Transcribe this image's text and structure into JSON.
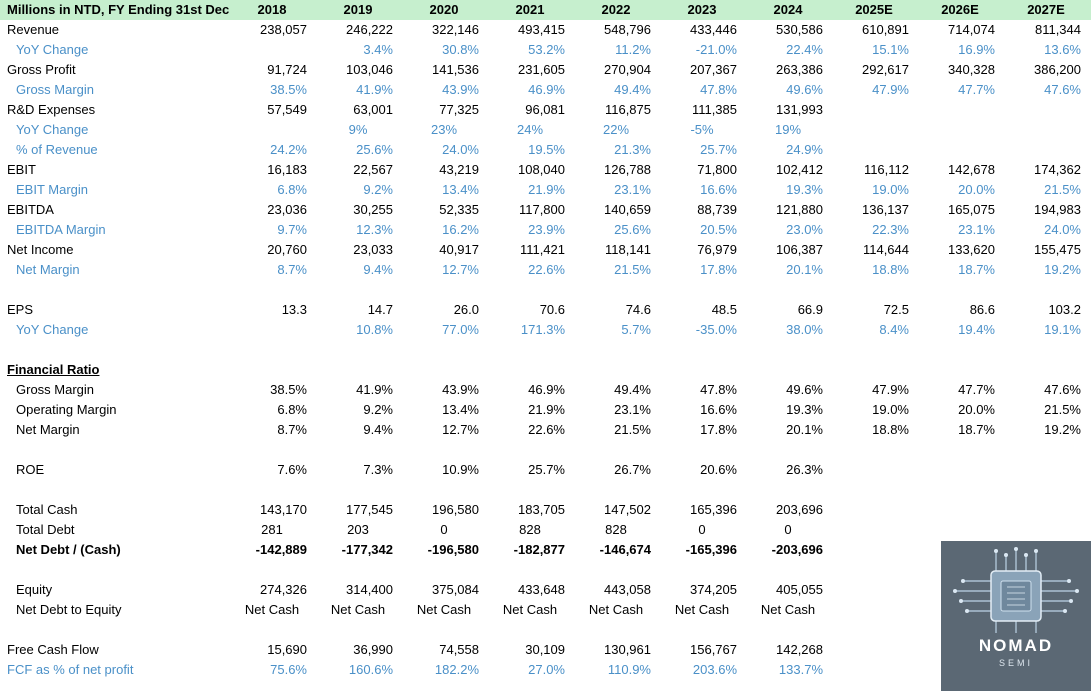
{
  "header": {
    "label": "Millions in NTD, FY Ending 31st Dec",
    "years": [
      "2018",
      "2019",
      "2020",
      "2021",
      "2022",
      "2023",
      "2024",
      "2025E",
      "2026E",
      "2027E"
    ]
  },
  "rows": [
    {
      "label": "Revenue",
      "values": [
        "238,057",
        "246,222",
        "322,146",
        "493,415",
        "548,796",
        "433,446",
        "530,586",
        "610,891",
        "714,074",
        "811,344"
      ]
    },
    {
      "label": "YoY Change",
      "style": "blue indent",
      "values": [
        "",
        "3.4%",
        "30.8%",
        "53.2%",
        "11.2%",
        "-21.0%",
        "22.4%",
        "15.1%",
        "16.9%",
        "13.6%"
      ]
    },
    {
      "label": "Gross Profit",
      "values": [
        "91,724",
        "103,046",
        "141,536",
        "231,605",
        "270,904",
        "207,367",
        "263,386",
        "292,617",
        "340,328",
        "386,200"
      ]
    },
    {
      "label": "Gross Margin",
      "style": "blue indent",
      "values": [
        "38.5%",
        "41.9%",
        "43.9%",
        "46.9%",
        "49.4%",
        "47.8%",
        "49.6%",
        "47.9%",
        "47.7%",
        "47.6%"
      ]
    },
    {
      "label": "R&D Expenses",
      "values": [
        "57,549",
        "63,001",
        "77,325",
        "96,081",
        "116,875",
        "111,385",
        "131,993",
        "",
        "",
        ""
      ]
    },
    {
      "label": "YoY Change",
      "style": "blue indent center",
      "values": [
        "",
        "9%",
        "23%",
        "24%",
        "22%",
        "-5%",
        "19%",
        "",
        "",
        ""
      ]
    },
    {
      "label": "% of Revenue",
      "style": "blue indent",
      "values": [
        "24.2%",
        "25.6%",
        "24.0%",
        "19.5%",
        "21.3%",
        "25.7%",
        "24.9%",
        "",
        "",
        ""
      ]
    },
    {
      "label": "EBIT",
      "values": [
        "16,183",
        "22,567",
        "43,219",
        "108,040",
        "126,788",
        "71,800",
        "102,412",
        "116,112",
        "142,678",
        "174,362"
      ]
    },
    {
      "label": "EBIT Margin",
      "style": "blue indent",
      "values": [
        "6.8%",
        "9.2%",
        "13.4%",
        "21.9%",
        "23.1%",
        "16.6%",
        "19.3%",
        "19.0%",
        "20.0%",
        "21.5%"
      ]
    },
    {
      "label": "EBITDA",
      "values": [
        "23,036",
        "30,255",
        "52,335",
        "117,800",
        "140,659",
        "88,739",
        "121,880",
        "136,137",
        "165,075",
        "194,983"
      ]
    },
    {
      "label": "EBITDA Margin",
      "style": "blue indent",
      "values": [
        "9.7%",
        "12.3%",
        "16.2%",
        "23.9%",
        "25.6%",
        "20.5%",
        "23.0%",
        "22.3%",
        "23.1%",
        "24.0%"
      ]
    },
    {
      "label": "Net Income",
      "values": [
        "20,760",
        "23,033",
        "40,917",
        "111,421",
        "118,141",
        "76,979",
        "106,387",
        "114,644",
        "133,620",
        "155,475"
      ]
    },
    {
      "label": "Net Margin",
      "style": "blue indent",
      "values": [
        "8.7%",
        "9.4%",
        "12.7%",
        "22.6%",
        "21.5%",
        "17.8%",
        "20.1%",
        "18.8%",
        "18.7%",
        "19.2%"
      ]
    },
    {
      "label": "",
      "values": []
    },
    {
      "label": "EPS",
      "values": [
        "13.3",
        "14.7",
        "26.0",
        "70.6",
        "74.6",
        "48.5",
        "66.9",
        "72.5",
        "86.6",
        "103.2"
      ]
    },
    {
      "label": "YoY Change",
      "style": "blue indent",
      "values": [
        "",
        "10.8%",
        "77.0%",
        "171.3%",
        "5.7%",
        "-35.0%",
        "38.0%",
        "8.4%",
        "19.4%",
        "19.1%"
      ]
    },
    {
      "label": "",
      "values": []
    },
    {
      "label": "Financial Ratio",
      "style": "ul",
      "values": []
    },
    {
      "label": "Gross Margin",
      "style": "indent",
      "values": [
        "38.5%",
        "41.9%",
        "43.9%",
        "46.9%",
        "49.4%",
        "47.8%",
        "49.6%",
        "47.9%",
        "47.7%",
        "47.6%"
      ]
    },
    {
      "label": "Operating Margin",
      "style": "indent",
      "values": [
        "6.8%",
        "9.2%",
        "13.4%",
        "21.9%",
        "23.1%",
        "16.6%",
        "19.3%",
        "19.0%",
        "20.0%",
        "21.5%"
      ]
    },
    {
      "label": "Net Margin",
      "style": "indent",
      "values": [
        "8.7%",
        "9.4%",
        "12.7%",
        "22.6%",
        "21.5%",
        "17.8%",
        "20.1%",
        "18.8%",
        "18.7%",
        "19.2%"
      ]
    },
    {
      "label": "",
      "values": []
    },
    {
      "label": "ROE",
      "style": "indent",
      "values": [
        "7.6%",
        "7.3%",
        "10.9%",
        "25.7%",
        "26.7%",
        "20.6%",
        "26.3%",
        "",
        "",
        ""
      ]
    },
    {
      "label": "",
      "values": []
    },
    {
      "label": "Total Cash",
      "style": "indent",
      "values": [
        "143,170",
        "177,545",
        "196,580",
        "183,705",
        "147,502",
        "165,396",
        "203,696",
        "",
        "",
        ""
      ]
    },
    {
      "label": "Total Debt",
      "style": "indent center",
      "values": [
        "281",
        "203",
        "0",
        "828",
        "828",
        "0",
        "0",
        "",
        "",
        ""
      ]
    },
    {
      "label": "Net Debt / (Cash)",
      "style": "indent hl",
      "values": [
        "-142,889",
        "-177,342",
        "-196,580",
        "-182,877",
        "-146,674",
        "-165,396",
        "-203,696",
        "",
        "",
        ""
      ]
    },
    {
      "label": "",
      "values": []
    },
    {
      "label": "Equity",
      "style": "indent",
      "values": [
        "274,326",
        "314,400",
        "375,084",
        "433,648",
        "443,058",
        "374,205",
        "405,055",
        "",
        "",
        ""
      ]
    },
    {
      "label": "Net Debt to Equity",
      "style": "indent center",
      "values": [
        "Net Cash",
        "Net Cash",
        "Net Cash",
        "Net Cash",
        "Net Cash",
        "Net Cash",
        "Net Cash",
        "",
        "",
        ""
      ]
    },
    {
      "label": "",
      "values": []
    },
    {
      "label": "Free Cash Flow",
      "values": [
        "15,690",
        "36,990",
        "74,558",
        "30,109",
        "130,961",
        "156,767",
        "142,268",
        "",
        "",
        ""
      ]
    },
    {
      "label": "FCF as % of net profit",
      "style": "blue",
      "values": [
        "75.6%",
        "160.6%",
        "182.2%",
        "27.0%",
        "110.9%",
        "203.6%",
        "133.7%",
        "",
        "",
        ""
      ]
    }
  ],
  "logo": {
    "title": "NOMAD",
    "subtitle": "SEMI",
    "icon": "chip-icon"
  },
  "colors": {
    "header_bg": "#c6efce",
    "blue_text": "#4a90c8",
    "logo_bg": "#5b6874"
  }
}
